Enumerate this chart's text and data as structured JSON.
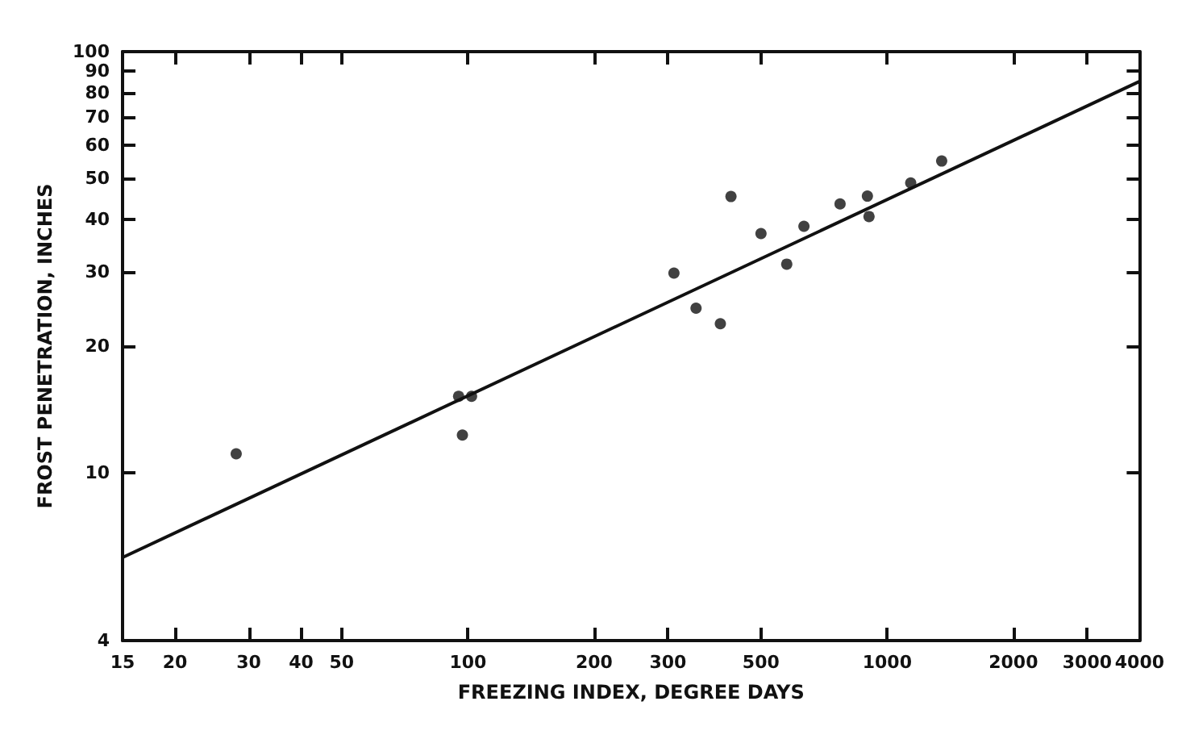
{
  "chart_data": {
    "type": "scatter",
    "xlabel": "FREEZING INDEX, DEGREE DAYS",
    "ylabel": "FROST PENETRATION, INCHES",
    "log": "xy",
    "grid": false,
    "xlim": [
      15,
      4000
    ],
    "ylim": [
      4,
      100
    ],
    "xticks": [
      15,
      20,
      30,
      40,
      50,
      100,
      200,
      300,
      500,
      1000,
      2000,
      3000,
      4000
    ],
    "yticks": [
      4,
      10,
      20,
      30,
      40,
      50,
      60,
      70,
      80,
      90,
      100
    ],
    "series": [
      {
        "color": "#111111",
        "marker": "circle",
        "x": [
          28,
          95,
          102,
          97,
          310,
          350,
          400,
          424,
          500,
          576,
          633,
          772,
          897,
          905,
          1138,
          1349
        ],
        "values": [
          11.1,
          15.2,
          15.2,
          12.3,
          29.8,
          24.6,
          22.6,
          45.3,
          37.0,
          31.3,
          38.5,
          43.5,
          45.4,
          40.6,
          48.8,
          55.0
        ]
      },
      {
        "type": "line",
        "color": "#111111",
        "marker": "none",
        "line_style": "solid",
        "x": [
          15,
          4000
        ],
        "values": [
          6.3,
          85
        ]
      }
    ]
  }
}
